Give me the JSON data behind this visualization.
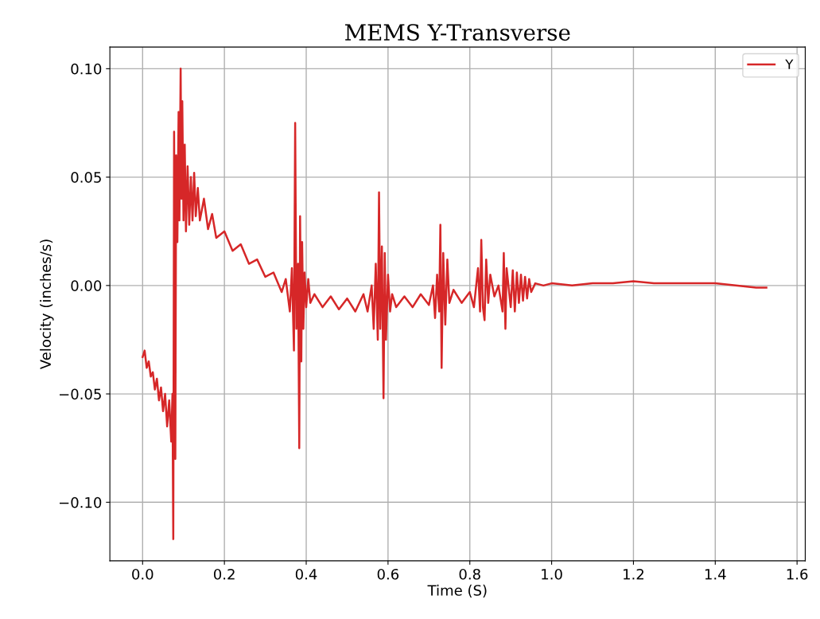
{
  "chart_data": {
    "type": "line",
    "title": "MEMS Y-Transverse",
    "xlabel": "Time (S)",
    "ylabel": "Velocity (inches/s)",
    "xlim": [
      -0.08,
      1.62
    ],
    "ylim": [
      -0.127,
      0.11
    ],
    "xticks": [
      {
        "value": 0.0,
        "label": "0.0"
      },
      0.2,
      0.4,
      0.6,
      0.8,
      {
        "value": 1.0,
        "label": "1.0"
      },
      1.2,
      1.4,
      1.6
    ],
    "yticks": [
      {
        "value": -0.1,
        "label": "−0.10"
      },
      {
        "value": -0.05,
        "label": "−0.05"
      },
      {
        "value": 0.0,
        "label": "0.00"
      },
      {
        "value": 0.05,
        "label": "0.05"
      },
      {
        "value": 0.1,
        "label": "0.10"
      }
    ],
    "grid": true,
    "legend": "top right",
    "marker": "none",
    "line_style": "solid",
    "series": [
      {
        "name": "Y",
        "color": "#d62728",
        "x": [
          0.0,
          0.005,
          0.01,
          0.015,
          0.02,
          0.025,
          0.03,
          0.035,
          0.04,
          0.045,
          0.05,
          0.055,
          0.06,
          0.065,
          0.07,
          0.073,
          0.075,
          0.077,
          0.08,
          0.082,
          0.085,
          0.088,
          0.09,
          0.093,
          0.095,
          0.097,
          0.1,
          0.103,
          0.106,
          0.11,
          0.114,
          0.118,
          0.122,
          0.126,
          0.13,
          0.135,
          0.14,
          0.15,
          0.16,
          0.17,
          0.18,
          0.2,
          0.22,
          0.24,
          0.26,
          0.28,
          0.3,
          0.32,
          0.34,
          0.35,
          0.36,
          0.365,
          0.37,
          0.373,
          0.376,
          0.38,
          0.383,
          0.385,
          0.388,
          0.39,
          0.393,
          0.396,
          0.4,
          0.405,
          0.41,
          0.42,
          0.44,
          0.46,
          0.48,
          0.5,
          0.52,
          0.54,
          0.55,
          0.56,
          0.565,
          0.57,
          0.575,
          0.578,
          0.581,
          0.585,
          0.589,
          0.592,
          0.595,
          0.6,
          0.605,
          0.61,
          0.62,
          0.64,
          0.66,
          0.68,
          0.7,
          0.71,
          0.715,
          0.72,
          0.725,
          0.728,
          0.731,
          0.735,
          0.74,
          0.745,
          0.75,
          0.76,
          0.78,
          0.8,
          0.81,
          0.82,
          0.825,
          0.828,
          0.832,
          0.836,
          0.84,
          0.845,
          0.85,
          0.86,
          0.87,
          0.88,
          0.883,
          0.887,
          0.89,
          0.9,
          0.905,
          0.91,
          0.915,
          0.92,
          0.925,
          0.93,
          0.935,
          0.94,
          0.945,
          0.95,
          0.96,
          0.98,
          1.0,
          1.05,
          1.1,
          1.15,
          1.2,
          1.25,
          1.3,
          1.35,
          1.4,
          1.45,
          1.5,
          1.525
        ],
        "values": [
          -0.033,
          -0.03,
          -0.038,
          -0.035,
          -0.042,
          -0.04,
          -0.048,
          -0.043,
          -0.053,
          -0.047,
          -0.058,
          -0.05,
          -0.065,
          -0.053,
          -0.072,
          -0.05,
          -0.117,
          0.071,
          -0.08,
          0.06,
          0.02,
          0.08,
          0.03,
          0.1,
          0.04,
          0.085,
          0.03,
          0.065,
          0.025,
          0.055,
          0.028,
          0.05,
          0.03,
          0.052,
          0.032,
          0.045,
          0.03,
          0.04,
          0.026,
          0.033,
          0.022,
          0.025,
          0.016,
          0.019,
          0.01,
          0.012,
          0.004,
          0.006,
          -0.003,
          0.003,
          -0.012,
          0.008,
          -0.03,
          0.075,
          -0.02,
          0.01,
          -0.075,
          0.032,
          -0.035,
          0.02,
          -0.02,
          0.006,
          -0.01,
          0.003,
          -0.008,
          -0.004,
          -0.01,
          -0.005,
          -0.011,
          -0.006,
          -0.012,
          -0.004,
          -0.012,
          0.0,
          -0.02,
          0.01,
          -0.025,
          0.043,
          -0.02,
          0.018,
          -0.052,
          0.015,
          -0.025,
          0.005,
          -0.012,
          -0.004,
          -0.01,
          -0.005,
          -0.01,
          -0.004,
          -0.009,
          0.0,
          -0.015,
          0.005,
          -0.012,
          0.028,
          -0.038,
          0.015,
          -0.018,
          0.012,
          -0.008,
          -0.002,
          -0.008,
          -0.003,
          -0.01,
          0.008,
          -0.012,
          0.021,
          -0.01,
          -0.016,
          0.012,
          -0.008,
          0.005,
          -0.005,
          0.0,
          -0.012,
          0.015,
          -0.02,
          0.008,
          -0.01,
          0.007,
          -0.012,
          0.006,
          -0.008,
          0.005,
          -0.007,
          0.004,
          -0.006,
          0.003,
          -0.003,
          0.001,
          0.0,
          0.001,
          0.0,
          0.001,
          0.001,
          0.002,
          0.001,
          0.001,
          0.001,
          0.001,
          0.0,
          -0.001,
          -0.001
        ]
      }
    ]
  }
}
